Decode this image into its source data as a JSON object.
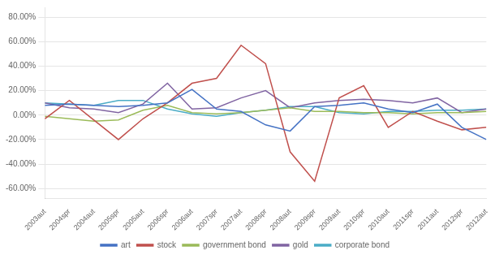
{
  "chart_data": {
    "type": "line",
    "categories": [
      "2003aut",
      "2004spr",
      "2004aut",
      "2005spr",
      "2005aut",
      "2006spr",
      "2006aut",
      "2007spr",
      "2007aut",
      "2008spr",
      "2008aut",
      "2009spr",
      "2009aut",
      "2010spr",
      "2010aut",
      "2011spr",
      "2011aut",
      "2012spr",
      "2012aut"
    ],
    "series": [
      {
        "name": "art",
        "color": "#4472C4",
        "values": [
          0.08,
          0.09,
          0.08,
          0.07,
          0.08,
          0.1,
          0.21,
          0.05,
          0.03,
          -0.08,
          -0.13,
          0.07,
          0.08,
          0.1,
          0.05,
          0.02,
          0.09,
          -0.1,
          -0.2
        ]
      },
      {
        "name": "stock",
        "color": "#C0504D",
        "values": [
          -0.03,
          0.12,
          -0.04,
          -0.2,
          -0.03,
          0.1,
          0.26,
          0.3,
          0.57,
          0.42,
          -0.3,
          -0.54,
          0.14,
          0.24,
          -0.1,
          0.03,
          -0.05,
          -0.12,
          -0.1
        ]
      },
      {
        "name": "government bond",
        "color": "#9BBB59",
        "values": [
          -0.01,
          -0.03,
          -0.05,
          -0.04,
          0.04,
          0.08,
          0.02,
          0.01,
          0.02,
          0.04,
          0.06,
          0.03,
          0.03,
          0.02,
          0.02,
          0.01,
          0.02,
          0.02,
          0.03
        ]
      },
      {
        "name": "gold",
        "color": "#8064A2",
        "values": [
          0.1,
          0.06,
          0.05,
          0.02,
          0.09,
          0.26,
          0.05,
          0.06,
          0.14,
          0.2,
          0.06,
          0.1,
          0.12,
          0.13,
          0.12,
          0.1,
          0.14,
          0.02,
          0.05
        ]
      },
      {
        "name": "corporate bond",
        "color": "#4BACC6",
        "values": [
          0.1,
          0.09,
          0.08,
          0.12,
          0.12,
          0.05,
          0.01,
          -0.01,
          0.02,
          0.04,
          0.07,
          0.07,
          0.02,
          0.01,
          0.03,
          0.03,
          0.04,
          0.04,
          0.05
        ]
      }
    ],
    "ylim": [
      -0.68,
      0.88
    ],
    "yticks": [
      {
        "value": -0.6,
        "label": "-60.00%"
      },
      {
        "value": -0.4,
        "label": "-40.00%"
      },
      {
        "value": -0.2,
        "label": "-20.00%"
      },
      {
        "value": 0.0,
        "label": "0.00%"
      },
      {
        "value": 0.2,
        "label": "20.00%"
      },
      {
        "value": 0.4,
        "label": "40.00%"
      },
      {
        "value": 0.6,
        "label": "60.00%"
      },
      {
        "value": 0.8,
        "label": "80.00%"
      }
    ],
    "grid": true,
    "legend": "bottom"
  }
}
